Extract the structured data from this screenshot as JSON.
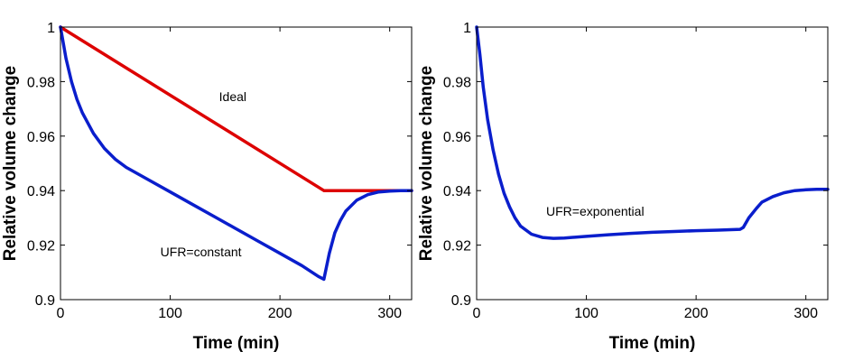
{
  "chart_data": [
    {
      "type": "line",
      "xlabel": "Time (min)",
      "ylabel": "Relative volume change",
      "xlim": [
        0,
        320
      ],
      "ylim": [
        0.9,
        1.0
      ],
      "xticks": [
        0,
        100,
        200,
        300
      ],
      "xtick_labels": [
        "0",
        "100",
        "200",
        "300"
      ],
      "yticks": [
        0.9,
        0.92,
        0.94,
        0.96,
        0.98,
        1.0
      ],
      "ytick_labels": [
        "0.9",
        "0.92",
        "0.94",
        "0.96",
        "0.98",
        "1"
      ],
      "grid": false,
      "series": [
        {
          "color": "#dd0000",
          "x": [
            0,
            240,
            241,
            320
          ],
          "y": [
            1.0,
            0.94,
            0.94,
            0.94
          ]
        },
        {
          "color": "#0a1ecc",
          "x": [
            0,
            5,
            10,
            15,
            20,
            30,
            40,
            50,
            60,
            80,
            100,
            120,
            140,
            160,
            180,
            200,
            220,
            235,
            240,
            245,
            250,
            255,
            260,
            270,
            280,
            290,
            300,
            310,
            320
          ],
          "y": [
            1.0,
            0.9885,
            0.98,
            0.9735,
            0.9685,
            0.961,
            0.9555,
            0.9515,
            0.9485,
            0.944,
            0.9395,
            0.935,
            0.9305,
            0.926,
            0.9215,
            0.917,
            0.9125,
            0.9085,
            0.9075,
            0.917,
            0.9245,
            0.929,
            0.9325,
            0.9365,
            0.9385,
            0.9395,
            0.9398,
            0.94,
            0.94
          ]
        }
      ],
      "annotations": [
        {
          "text": "Ideal",
          "x": 157,
          "y": 0.9745
        },
        {
          "text": "UFR=constant",
          "x": 128,
          "y": 0.9175
        }
      ]
    },
    {
      "type": "line",
      "xlabel": "Time (min)",
      "ylabel": "Relative volume change",
      "xlim": [
        0,
        320
      ],
      "ylim": [
        0.9,
        1.0
      ],
      "xticks": [
        0,
        100,
        200,
        300
      ],
      "xtick_labels": [
        "0",
        "100",
        "200",
        "300"
      ],
      "yticks": [
        0.9,
        0.92,
        0.94,
        0.96,
        0.98,
        1.0
      ],
      "ytick_labels": [
        "0.9",
        "0.92",
        "0.94",
        "0.96",
        "0.98",
        "1"
      ],
      "grid": false,
      "series": [
        {
          "color": "#0a1ecc",
          "x": [
            0,
            3,
            6,
            10,
            15,
            20,
            25,
            30,
            35,
            40,
            50,
            60,
            70,
            80,
            100,
            120,
            140,
            160,
            180,
            200,
            220,
            240,
            243,
            248,
            255,
            260,
            270,
            280,
            290,
            300,
            310,
            320
          ],
          "y": [
            1.0,
            0.99,
            0.978,
            0.966,
            0.955,
            0.946,
            0.939,
            0.934,
            0.93,
            0.927,
            0.924,
            0.9228,
            0.9225,
            0.9226,
            0.9232,
            0.9238,
            0.9243,
            0.9247,
            0.925,
            0.9253,
            0.9255,
            0.9258,
            0.9265,
            0.93,
            0.9335,
            0.9358,
            0.9378,
            0.9392,
            0.94,
            0.9403,
            0.9405,
            0.9405
          ]
        }
      ],
      "annotations": [
        {
          "text": "UFR=exponential",
          "x": 108,
          "y": 0.9325
        }
      ]
    }
  ]
}
